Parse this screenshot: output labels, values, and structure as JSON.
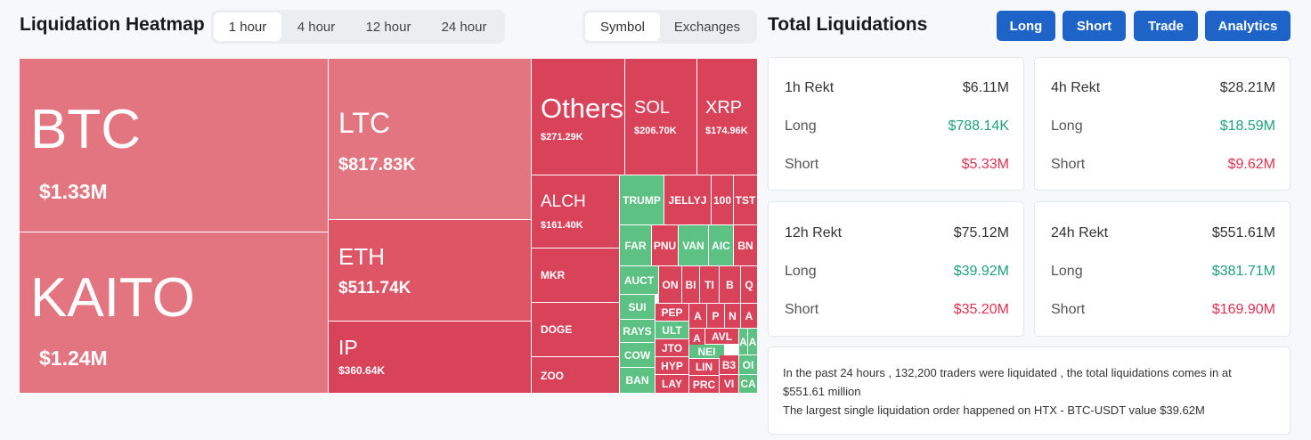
{
  "heatmap": {
    "title": "Liquidation Heatmap",
    "time_tabs": [
      "1 hour",
      "4 hour",
      "12 hour",
      "24 hour"
    ],
    "active_tab": "1 hour",
    "group_tabs": [
      "Symbol",
      "Exchanges"
    ],
    "active_group": "Symbol",
    "cells": {
      "btc": {
        "symbol": "BTC",
        "value": "$1.33M"
      },
      "kaito": {
        "symbol": "KAITO",
        "value": "$1.24M"
      },
      "ltc": {
        "symbol": "LTC",
        "value": "$817.83K"
      },
      "eth": {
        "symbol": "ETH",
        "value": "$511.74K"
      },
      "ip": {
        "symbol": "IP",
        "value": "$360.64K"
      },
      "others": {
        "symbol": "Others",
        "value": "$271.29K"
      },
      "sol": {
        "symbol": "SOL",
        "value": "$206.70K"
      },
      "xrp": {
        "symbol": "XRP",
        "value": "$174.96K"
      },
      "alch": {
        "symbol": "ALCH",
        "value": "$161.40K"
      },
      "mkr": {
        "symbol": "MKR"
      },
      "doge": {
        "symbol": "DOGE"
      },
      "zoo": {
        "symbol": "ZOO"
      }
    },
    "small_cells": [
      "TRUMP",
      "JELLYJ",
      "100",
      "TST",
      "FAR",
      "PNU",
      "VAN",
      "AIC",
      "BN",
      "AUCT",
      "ON",
      "BI",
      "TI",
      "B",
      "Q",
      "SUI",
      "PEP",
      "A",
      "P",
      "N",
      "A",
      "RAYS",
      "ULT",
      "A",
      "COW",
      "JTO",
      "AVL",
      "A",
      "A",
      "NEI",
      "BAN",
      "HYP",
      "LIN",
      "B3",
      "OI",
      "LAY",
      "PRC",
      "VI",
      "CA"
    ]
  },
  "totals": {
    "title": "Total Liquidations",
    "actions": [
      "Long",
      "Short",
      "Trade",
      "Analytics"
    ],
    "cards": [
      {
        "period": "1h Rekt",
        "total": "$6.11M",
        "long_label": "Long",
        "long": "$788.14K",
        "short_label": "Short",
        "short": "$5.33M"
      },
      {
        "period": "4h Rekt",
        "total": "$28.21M",
        "long_label": "Long",
        "long": "$18.59M",
        "short_label": "Short",
        "short": "$9.62M"
      },
      {
        "period": "12h Rekt",
        "total": "$75.12M",
        "long_label": "Long",
        "long": "$39.92M",
        "short_label": "Short",
        "short": "$35.20M"
      },
      {
        "period": "24h Rekt",
        "total": "$551.61M",
        "long_label": "Long",
        "long": "$381.71M",
        "short_label": "Short",
        "short": "$169.90M"
      }
    ],
    "summary": {
      "line1": "In the past 24 hours , 132,200 traders were liquidated , the total liquidations comes in at $551.61 million",
      "line2": "The largest single liquidation order happened on HTX - BTC-USDT value $39.62M"
    }
  },
  "colors": {
    "long": "#1fa17a",
    "short": "#e0314f",
    "accent": "#1e64c8",
    "heat_light": "#e27580",
    "heat_mid": "#de5566",
    "heat_dark": "#d9435a",
    "heat_green": "#5cc183"
  }
}
